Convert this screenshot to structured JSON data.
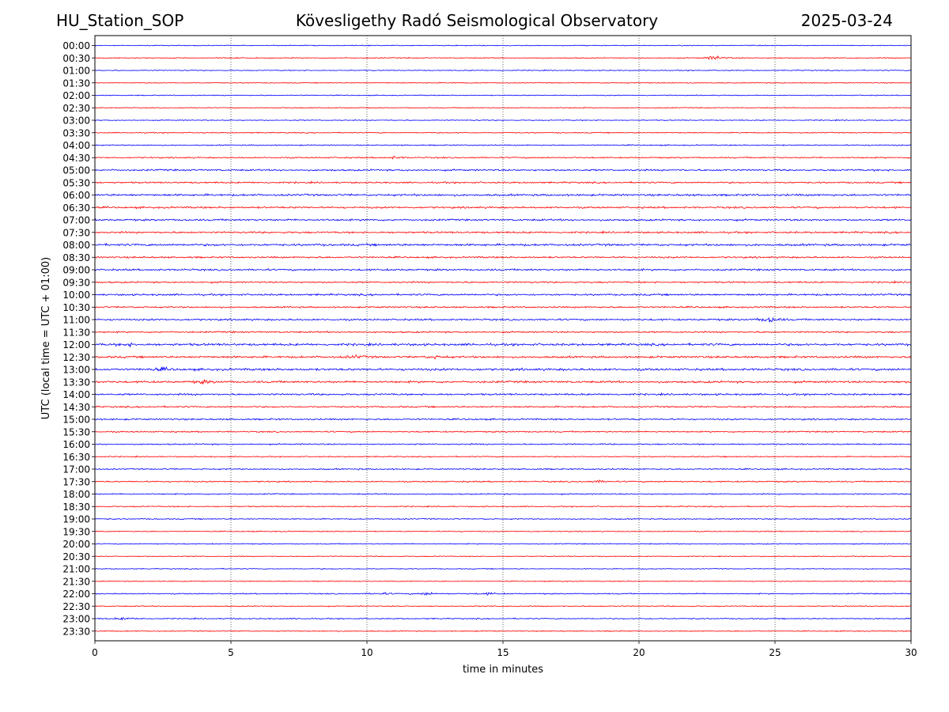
{
  "header": {
    "station": "HU_Station_SOP",
    "title": "Köveslig­ethy Radó Seismological Observatory",
    "date": "2025-03-24"
  },
  "chart_data": {
    "type": "line",
    "title": "Köveslig­ethy Radó Seismological Observatory",
    "xlabel": "time in minutes",
    "ylabel": "UTC (local time = UTC + 01:00)",
    "xlim": [
      0,
      30
    ],
    "xticks": [
      0,
      5,
      10,
      15,
      20,
      25,
      30
    ],
    "grid": "vertical dotted lines at x ticks",
    "trace_colors": [
      "#0000ff",
      "#ff0000"
    ],
    "row_labels": [
      "00:00",
      "00:30",
      "01:00",
      "01:30",
      "02:00",
      "02:30",
      "03:00",
      "03:30",
      "04:00",
      "04:30",
      "05:00",
      "05:30",
      "06:00",
      "06:30",
      "07:00",
      "07:30",
      "08:00",
      "08:30",
      "09:00",
      "09:30",
      "10:00",
      "10:30",
      "11:00",
      "11:30",
      "12:00",
      "12:30",
      "13:00",
      "13:30",
      "14:00",
      "14:30",
      "15:00",
      "15:30",
      "16:00",
      "16:30",
      "17:00",
      "17:30",
      "18:00",
      "18:30",
      "19:00",
      "19:30",
      "20:00",
      "20:30",
      "21:00",
      "21:30",
      "22:00",
      "22:30",
      "23:00",
      "23:30"
    ],
    "noise_level": [
      0.8,
      0.9,
      0.8,
      0.8,
      0.8,
      0.8,
      0.8,
      0.9,
      1.0,
      1.2,
      1.5,
      1.4,
      1.8,
      1.6,
      1.6,
      1.6,
      1.9,
      1.5,
      1.6,
      1.4,
      1.6,
      1.4,
      1.6,
      1.4,
      2.0,
      1.8,
      2.0,
      1.8,
      1.6,
      1.4,
      1.4,
      1.2,
      1.2,
      1.0,
      1.2,
      1.2,
      1.1,
      1.0,
      1.0,
      0.9,
      0.9,
      0.8,
      0.8,
      0.8,
      1.0,
      0.9,
      1.0,
      0.9
    ],
    "events": [
      {
        "row": 1,
        "minute": 22.8,
        "amplitude": 4.5
      },
      {
        "row": 9,
        "minute": 11.0,
        "amplitude": 2.0
      },
      {
        "row": 22,
        "minute": 24.8,
        "amplitude": 5.5
      },
      {
        "row": 24,
        "minute": 1.2,
        "amplitude": 2.5
      },
      {
        "row": 25,
        "minute": 9.6,
        "amplitude": 2.2
      },
      {
        "row": 25,
        "minute": 12.5,
        "amplitude": 2.2
      },
      {
        "row": 26,
        "minute": 2.5,
        "amplitude": 2.5
      },
      {
        "row": 27,
        "minute": 4.0,
        "amplitude": 3.0
      },
      {
        "row": 35,
        "minute": 18.5,
        "amplitude": 2.0
      },
      {
        "row": 44,
        "minute": 10.5,
        "amplitude": 2.5
      },
      {
        "row": 44,
        "minute": 12.2,
        "amplitude": 2.8
      },
      {
        "row": 44,
        "minute": 14.5,
        "amplitude": 2.2
      },
      {
        "row": 46,
        "minute": 1.1,
        "amplitude": 2.5
      }
    ]
  }
}
